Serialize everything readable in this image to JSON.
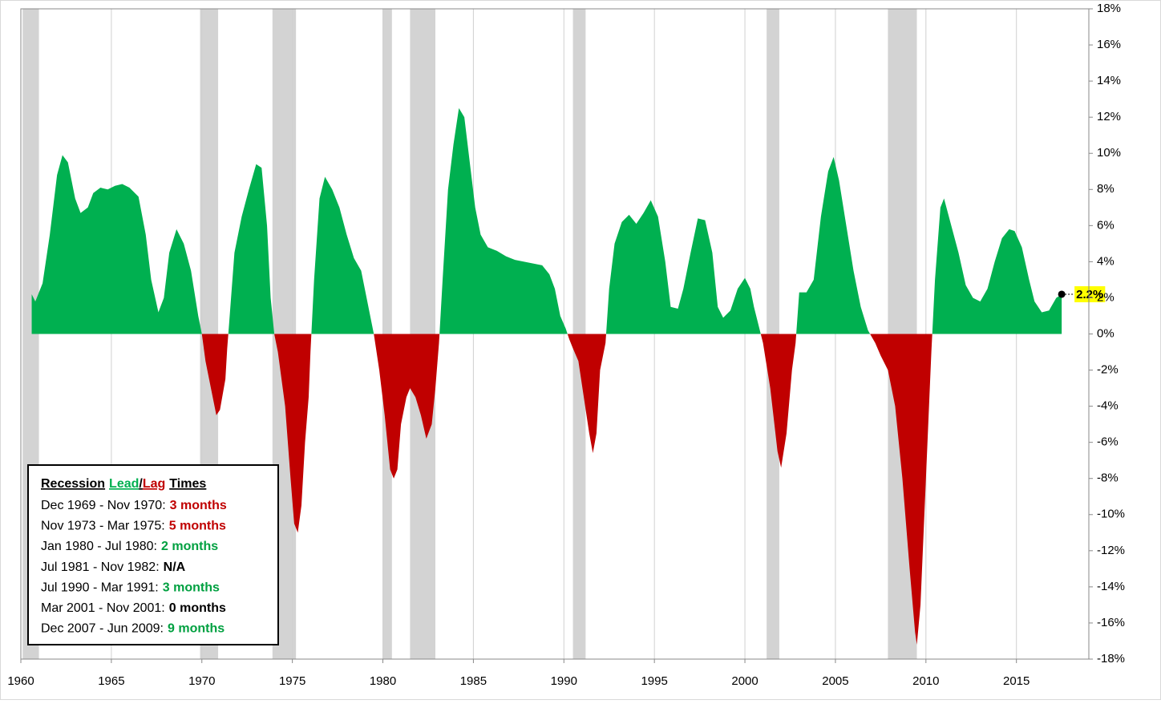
{
  "chart_data": {
    "type": "area",
    "positive_color": "#00b050",
    "negative_color": "#c00000",
    "recession_color": "#d3d3d3",
    "grid": {
      "x": true,
      "y": false
    },
    "xlim": [
      1960,
      2019
    ],
    "xticks": [
      1960,
      1965,
      1970,
      1975,
      1980,
      1985,
      1990,
      1995,
      2000,
      2005,
      2010,
      2015
    ],
    "ylim": [
      -18,
      18
    ],
    "yticks": [
      {
        "value": 18,
        "label": "18%"
      },
      {
        "value": 16,
        "label": "16%"
      },
      {
        "value": 14,
        "label": "14%"
      },
      {
        "value": 12,
        "label": "12%"
      },
      {
        "value": 10,
        "label": "10%"
      },
      {
        "value": 8,
        "label": "8%"
      },
      {
        "value": 6,
        "label": "6%"
      },
      {
        "value": 4,
        "label": "4%"
      },
      {
        "value": 2,
        "label": "2%"
      },
      {
        "value": 0,
        "label": "0%"
      },
      {
        "value": -2,
        "label": "-2%"
      },
      {
        "value": -4,
        "label": "-4%"
      },
      {
        "value": -6,
        "label": "-6%"
      },
      {
        "value": -8,
        "label": "-8%"
      },
      {
        "value": -10,
        "label": "-10%"
      },
      {
        "value": -12,
        "label": "-12%"
      },
      {
        "value": -14,
        "label": "-14%"
      },
      {
        "value": -16,
        "label": "-16%"
      },
      {
        "value": -18,
        "label": "-18%"
      }
    ],
    "recessions": [
      {
        "start": 1960.1,
        "end": 1961.0
      },
      {
        "start": 1969.9,
        "end": 1970.9
      },
      {
        "start": 1973.9,
        "end": 1975.2
      },
      {
        "start": 1980.0,
        "end": 1980.5
      },
      {
        "start": 1981.5,
        "end": 1982.9
      },
      {
        "start": 1990.5,
        "end": 1991.2
      },
      {
        "start": 2001.2,
        "end": 2001.9
      },
      {
        "start": 2007.9,
        "end": 2009.5
      }
    ],
    "x": [
      1960.6,
      1960.8,
      1961.2,
      1961.6,
      1962.0,
      1962.3,
      1962.6,
      1963.0,
      1963.3,
      1963.7,
      1964.0,
      1964.4,
      1964.8,
      1965.2,
      1965.6,
      1966.0,
      1966.5,
      1966.9,
      1967.2,
      1967.6,
      1967.9,
      1968.2,
      1968.6,
      1969.0,
      1969.4,
      1969.8,
      1970.0,
      1970.2,
      1970.6,
      1970.8,
      1971.0,
      1971.3,
      1971.4,
      1971.5,
      1971.8,
      1972.2,
      1972.6,
      1973.0,
      1973.3,
      1973.6,
      1973.8,
      1974.0,
      1974.2,
      1974.6,
      1974.9,
      1975.1,
      1975.3,
      1975.5,
      1975.7,
      1975.9,
      1976.0,
      1976.2,
      1976.5,
      1976.8,
      1977.2,
      1977.6,
      1978.0,
      1978.4,
      1978.8,
      1979.0,
      1979.3,
      1979.5,
      1979.8,
      1980.1,
      1980.4,
      1980.6,
      1980.8,
      1981.0,
      1981.3,
      1981.5,
      1981.8,
      1982.1,
      1982.4,
      1982.7,
      1982.9,
      1983.1,
      1983.3,
      1983.6,
      1983.9,
      1984.2,
      1984.5,
      1984.8,
      1985.1,
      1985.4,
      1985.8,
      1986.3,
      1986.8,
      1987.3,
      1987.8,
      1988.3,
      1988.8,
      1989.2,
      1989.5,
      1989.8,
      1990.1,
      1990.3,
      1990.5,
      1990.8,
      1991.1,
      1991.4,
      1991.6,
      1991.8,
      1992.0,
      1992.3,
      1992.5,
      1992.8,
      1993.2,
      1993.6,
      1994.0,
      1994.4,
      1994.8,
      1995.2,
      1995.6,
      1995.9,
      1996.3,
      1996.6,
      1997.0,
      1997.4,
      1997.8,
      1998.2,
      1998.5,
      1998.8,
      1999.2,
      1999.6,
      2000.0,
      2000.3,
      2000.5,
      2000.8,
      2001.0,
      2001.4,
      2001.8,
      2002.0,
      2002.3,
      2002.6,
      2002.8,
      2003.0,
      2003.4,
      2003.8,
      2004.2,
      2004.6,
      2004.9,
      2005.2,
      2005.6,
      2006.0,
      2006.4,
      2006.8,
      2007.2,
      2007.5,
      2007.9,
      2008.3,
      2008.7,
      2009.1,
      2009.4,
      2009.5,
      2009.7,
      2010.0,
      2010.3,
      2010.5,
      2010.8,
      2011.0,
      2011.4,
      2011.8,
      2012.2,
      2012.6,
      2013.0,
      2013.4,
      2013.8,
      2014.2,
      2014.6,
      2014.9,
      2015.3,
      2015.7,
      2016.0,
      2016.4,
      2016.8,
      2017.2,
      2017.5
    ],
    "values": [
      2.2,
      1.8,
      2.8,
      5.5,
      8.8,
      9.9,
      9.5,
      7.5,
      6.7,
      7.0,
      7.8,
      8.1,
      8.0,
      8.2,
      8.3,
      8.1,
      7.6,
      5.5,
      3.0,
      1.2,
      2.0,
      4.5,
      5.8,
      5.0,
      3.5,
      1.0,
      0,
      -1.5,
      -3.5,
      -4.5,
      -4.2,
      -2.5,
      -0.8,
      0.5,
      4.5,
      6.5,
      8.0,
      9.4,
      9.2,
      6.0,
      2.0,
      0,
      -1.0,
      -4.0,
      -8.0,
      -10.5,
      -11.0,
      -9.5,
      -6.0,
      -3.5,
      -1.0,
      3.0,
      7.5,
      8.7,
      8.0,
      7.0,
      5.5,
      4.2,
      3.5,
      2.5,
      1.0,
      0,
      -2.0,
      -4.5,
      -7.5,
      -8.0,
      -7.5,
      -5.0,
      -3.5,
      -3.0,
      -3.5,
      -4.5,
      -5.8,
      -5.0,
      -3.0,
      -0.5,
      3.0,
      8.0,
      10.5,
      12.5,
      12.0,
      9.5,
      7.0,
      5.5,
      4.8,
      4.6,
      4.3,
      4.1,
      4.0,
      3.9,
      3.8,
      3.3,
      2.5,
      1.0,
      0.3,
      -0.3,
      -0.8,
      -1.5,
      -3.5,
      -5.5,
      -6.6,
      -5.5,
      -2.0,
      -0.5,
      2.5,
      5.0,
      6.2,
      6.6,
      6.1,
      6.7,
      7.4,
      6.5,
      4.0,
      1.5,
      1.4,
      2.5,
      4.5,
      6.4,
      6.3,
      4.5,
      1.5,
      0.9,
      1.3,
      2.5,
      3.1,
      2.5,
      1.5,
      0.3,
      -0.5,
      -3.0,
      -6.5,
      -7.4,
      -5.5,
      -2.0,
      -0.5,
      2.3,
      2.3,
      3.0,
      6.5,
      9.0,
      9.8,
      8.5,
      6.0,
      3.5,
      1.5,
      0.2,
      -0.5,
      -1.2,
      -2.0,
      -4.0,
      -8.0,
      -13.0,
      -16.5,
      -17.2,
      -15.0,
      -8.0,
      -1.0,
      3.0,
      7.0,
      7.5,
      6.0,
      4.5,
      2.7,
      2.0,
      1.8,
      2.5,
      4.0,
      5.3,
      5.8,
      5.7,
      4.8,
      3.0,
      1.8,
      1.2,
      1.3,
      2.0,
      2.2
    ],
    "end_label": "2.2%",
    "legend_title": [
      {
        "text": "Recession",
        "color": "#000000"
      },
      {
        "text": "Lead",
        "color": "#00b050"
      },
      {
        "text": "/",
        "color": "#000000"
      },
      {
        "text": "Lag",
        "color": "#c00000"
      },
      {
        "text": "Times",
        "color": "#000000"
      }
    ],
    "legend_rows": [
      {
        "period": "Dec 1969 - Nov 1970:",
        "lead": "3 months",
        "color": "#c00000"
      },
      {
        "period": "Nov 1973 - Mar 1975:",
        "lead": "5 months",
        "color": "#c00000"
      },
      {
        "period": "Jan 1980 - Jul 1980:",
        "lead": "2 months",
        "color": "#00a040"
      },
      {
        "period": "Jul 1981 - Nov 1982:",
        "lead": "N/A",
        "color": "#000000"
      },
      {
        "period": "Jul 1990 - Mar 1991:",
        "lead": "3 months",
        "color": "#00a040"
      },
      {
        "period": "Mar 2001 - Nov 2001:",
        "lead": "0 months",
        "color": "#000000"
      },
      {
        "period": "Dec 2007 - Jun 2009:",
        "lead": "9 months",
        "color": "#00a040"
      }
    ]
  }
}
